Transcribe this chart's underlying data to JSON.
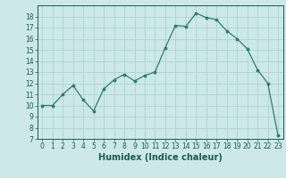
{
  "x": [
    0,
    1,
    2,
    3,
    4,
    5,
    6,
    7,
    8,
    9,
    10,
    11,
    12,
    13,
    14,
    15,
    16,
    17,
    18,
    19,
    20,
    21,
    22,
    23
  ],
  "y": [
    10,
    10,
    11,
    11.8,
    10.5,
    9.5,
    11.5,
    12.3,
    12.8,
    12.2,
    12.7,
    13.0,
    15.2,
    17.2,
    17.1,
    18.3,
    17.9,
    17.7,
    16.7,
    16.0,
    15.1,
    13.2,
    12.0,
    7.3
  ],
  "xlabel": "Humidex (Indice chaleur)",
  "bg_color": "#cce8e8",
  "line_color": "#2e7d6e",
  "marker_color": "#2e7d6e",
  "grid_color": "#aacfcf",
  "ylim": [
    7,
    19
  ],
  "xlim": [
    -0.5,
    23.5
  ],
  "yticks": [
    7,
    8,
    9,
    10,
    11,
    12,
    13,
    14,
    15,
    16,
    17,
    18
  ],
  "xticks": [
    0,
    1,
    2,
    3,
    4,
    5,
    6,
    7,
    8,
    9,
    10,
    11,
    12,
    13,
    14,
    15,
    16,
    17,
    18,
    19,
    20,
    21,
    22,
    23
  ]
}
